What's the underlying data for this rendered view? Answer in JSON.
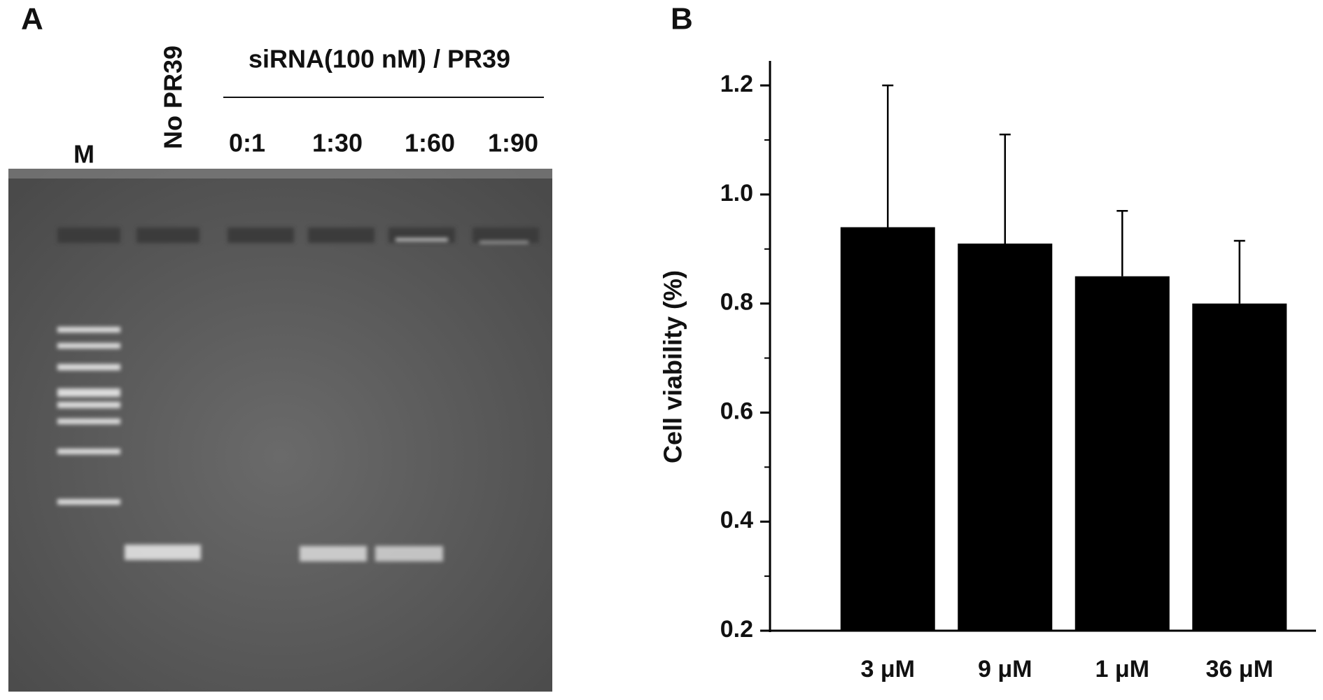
{
  "gel": {
    "panel_label": "A",
    "marker_label": "M",
    "control_label": "No PR39",
    "group_label": "siRNA(100 nM) / PR39",
    "lane_labels": [
      "0:1",
      "1:30",
      "1:60",
      "1:90"
    ]
  },
  "chart_data": {
    "type": "bar",
    "panel_label": "B",
    "y_label": "Cell viability (%)",
    "categories": [
      "3 μM",
      "9 μM",
      "1 μM",
      "36 μM"
    ],
    "values": [
      0.94,
      0.91,
      0.85,
      0.8
    ],
    "errors": [
      0.26,
      0.2,
      0.12,
      0.115
    ],
    "color": "#000000",
    "ylim": [
      0.2,
      1.245
    ],
    "yticks": [
      0.2,
      0.4,
      0.6,
      0.8,
      {
        "value": 1,
        "label": "1.0"
      },
      1.2
    ],
    "minor_yticks": [
      0.3,
      0.5,
      0.7,
      0.9,
      1.1
    ]
  }
}
